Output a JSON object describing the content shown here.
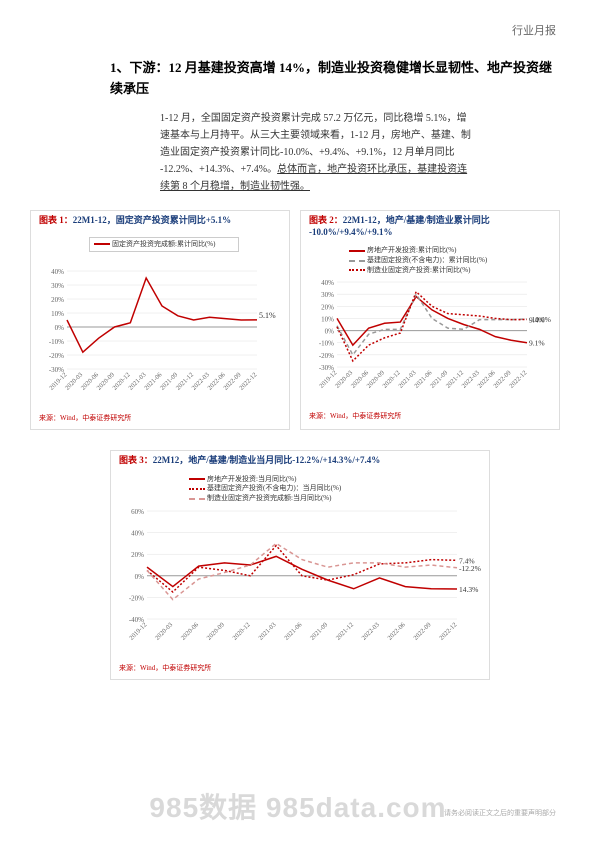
{
  "header": {
    "category": "行业月报"
  },
  "section": {
    "number": "1、下游：",
    "title_rest": "12 月基建投资高增 14%，制造业投资稳健增长显韧性、地产投资继续承压"
  },
  "paragraph": {
    "l1": "1-12 月，全国固定资产投资累计完成 57.2 万亿元，同比稳增 5.1%，增",
    "l2": "速基本与上月持平。从三大主要领域来看，1-12 月，房地产、基建、制",
    "l3": "造业固定资产投资累计同比-10.0%、+9.4%、+9.1%，12 月单月同比",
    "l4": "-12.2%、+14.3%、+7.4%。",
    "l5_u": "总体而言，地产投资环比承压，基建投资连",
    "l6_u": "续第 8 个月稳增，制造业韧性强。"
  },
  "chart1": {
    "title_red": "图表 1：",
    "title_blue": "22M1-12，固定资产投资累计同比+5.1%",
    "legend": {
      "s1": "固定资产投资完成额:累计同比(%)"
    },
    "xlabels": [
      "2019-12",
      "2020-03",
      "2020-06",
      "2020-09",
      "2020-12",
      "2021-03",
      "2021-06",
      "2021-09",
      "2021-12",
      "2022-03",
      "2022-06",
      "2022-09",
      "2022-12"
    ],
    "y_ticks": [
      -30,
      -20,
      -10,
      0,
      10,
      20,
      30,
      40
    ],
    "series1": {
      "color": "#c00000",
      "values": [
        5,
        -18,
        -8,
        0,
        3,
        35,
        15,
        8,
        5,
        7,
        6,
        5,
        5.1
      ]
    },
    "end_label": "5.1%",
    "ylim": [
      -30,
      40
    ],
    "source": "来源：Wind，中泰证券研究所"
  },
  "chart2": {
    "title_red": "图表 2：",
    "title_blue_l1": "22M1-12，地产/基建/制造业累计同比",
    "title_blue_l2": "-10.0%/+9.4%/+9.1%",
    "legend": {
      "s1": "房地产开发投资:累计同比(%)",
      "s2": "基建固定投资(不含电力)：累计同比(%)",
      "s3": "制造业固定资产投资:累计同比(%)"
    },
    "xlabels": [
      "2019-12",
      "2020-03",
      "2020-06",
      "2020-09",
      "2020-12",
      "2021-03",
      "2021-06",
      "2021-09",
      "2021-12",
      "2022-03",
      "2022-06",
      "2022-09",
      "2022-12"
    ],
    "y_ticks": [
      -30,
      -20,
      -10,
      0,
      10,
      20,
      30,
      40
    ],
    "ylim": [
      -30,
      40
    ],
    "series1": {
      "color": "#c00000",
      "dash": "",
      "values": [
        10,
        -12,
        2,
        6,
        7,
        28,
        17,
        10,
        5,
        1,
        -5,
        -8,
        -10.0
      ]
    },
    "series2": {
      "color": "#999999",
      "dash": "4,3",
      "values": [
        4,
        -20,
        -3,
        1,
        1,
        30,
        10,
        2,
        1,
        9,
        9,
        9,
        9.4
      ]
    },
    "series3": {
      "color": "#c00000",
      "dash": "2,2",
      "values": [
        3,
        -25,
        -12,
        -6,
        -2,
        32,
        20,
        14,
        13,
        12,
        10,
        9,
        9.1
      ]
    },
    "end_labels": {
      "a": "9.1%",
      "b": "-10.0%",
      "c": "9.4%"
    },
    "source": "来源：Wind，中泰证券研究所"
  },
  "chart3": {
    "title_red": "图表 3：",
    "title_blue": "22M12，地产/基建/制造业当月同比-12.2%/+14.3%/+7.4%",
    "legend": {
      "s1": "房地产开发投资:当月同比(%)",
      "s2": "基建固定资产投资(不含电力)：当月同比(%)",
      "s3": "制造业固定资产投资完成额:当月同比(%)"
    },
    "xlabels": [
      "2019-12",
      "2020-03",
      "2020-06",
      "2020-09",
      "2020-12",
      "2021-03",
      "2021-06",
      "2021-09",
      "2021-12",
      "2022-03",
      "2022-06",
      "2022-09",
      "2022-12"
    ],
    "y_ticks": [
      -40,
      -20,
      0,
      20,
      40,
      60
    ],
    "ylim": [
      -40,
      60
    ],
    "series1": {
      "color": "#c00000",
      "dash": "",
      "values": [
        8,
        -10,
        9,
        12,
        10,
        18,
        6,
        -4,
        -12,
        -2,
        -10,
        -12,
        -12.2
      ]
    },
    "series2": {
      "color": "#c00000",
      "dash": "2,2",
      "values": [
        5,
        -15,
        8,
        5,
        0,
        28,
        0,
        -4,
        1,
        11,
        12,
        15,
        14.3
      ]
    },
    "series3": {
      "color": "#d99694",
      "dash": "4,3",
      "values": [
        5,
        -22,
        -3,
        3,
        10,
        30,
        15,
        8,
        12,
        12,
        8,
        10,
        7.4
      ]
    },
    "end_labels": {
      "a": "14.3%",
      "b": "7.4%",
      "c": "-12.2%"
    },
    "source": "来源：Wind，中泰证券研究所"
  },
  "footer": {
    "watermark": "985数据 985data.com",
    "disclaimer": "请务必阅读正文之后的重要声明部分"
  },
  "colors": {
    "grid": "#e0e0e0",
    "axis": "#999999"
  }
}
